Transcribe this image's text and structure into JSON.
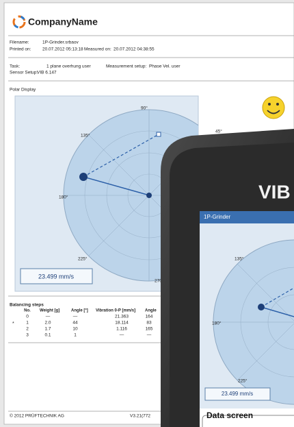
{
  "header": {
    "company": "CompanyName"
  },
  "info": {
    "filename_label": "Filename:",
    "filename": "1P-Grinder.srbaov",
    "printed_label": "Printed on:",
    "printed": "20.07.2012 05:13:18",
    "measured_label": "Measured on:",
    "measured": "20.07.2012 04:38:55",
    "task_label": "Task:",
    "task": "1 plane overhung user",
    "setup_label": "Measurement setup:",
    "setup": "Phase Vel. user",
    "sensor_label": "Sensor Setup:",
    "sensor": "VIB 6.147"
  },
  "polar": {
    "title": "Polar Display",
    "labels": [
      "90°",
      "135°",
      "45°",
      "180°",
      "225°",
      "270"
    ],
    "value": "23.499 mm/s"
  },
  "table": {
    "title": "Balancing steps",
    "headers": [
      "No.",
      "Weight [g]",
      "Angle [°]",
      "Vibration 0-P [mm/s]",
      "Angle"
    ],
    "rows": [
      {
        "cells": [
          "0",
          "—",
          "—",
          "21.363",
          "164"
        ]
      },
      {
        "marker": "*",
        "cells": [
          "1",
          "2.0",
          "44",
          "18.114",
          "83"
        ]
      },
      {
        "cells": [
          "2",
          "1.7",
          "10",
          "1.116",
          "165"
        ]
      },
      {
        "cells": [
          "3",
          "0.1",
          "1",
          "—",
          "—"
        ]
      }
    ]
  },
  "footer": {
    "copyright": "© 2012 PRÜFTECHNIK AG",
    "version": "V3.21(772"
  },
  "device": {
    "brand": "VIB",
    "screen_title": "1P-Grinder",
    "labels": [
      "135°",
      "180°",
      "225°"
    ],
    "value": "23.499 mm/s",
    "section": "Data screen"
  }
}
